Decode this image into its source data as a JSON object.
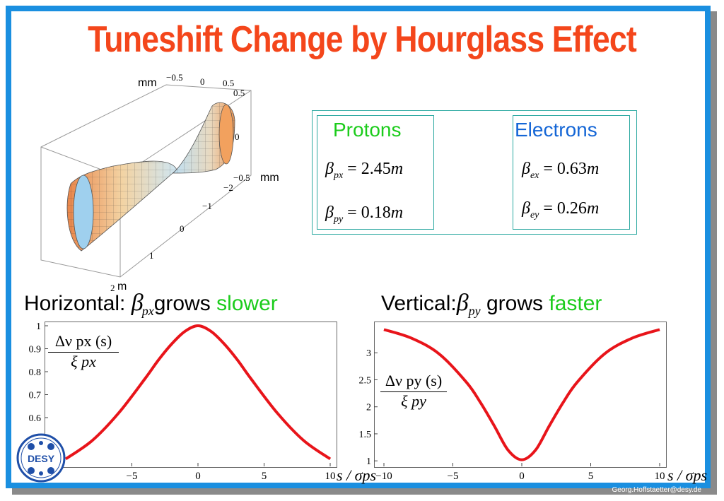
{
  "title": "Tuneshift Change by Hourglass Effect",
  "surface_plot": {
    "tick_labels": [
      "−0.5",
      "0",
      "0.5",
      "0.5",
      "0",
      "−0.5",
      "−2",
      "−1",
      "0",
      "1",
      "2"
    ],
    "unit_labels": [
      "mm",
      "mm",
      "m"
    ]
  },
  "beta_table": {
    "protons": {
      "heading": "Protons",
      "rows": [
        {
          "symbol": "β",
          "sub": "px",
          "rhs": "= 2.45",
          "unit": "m"
        },
        {
          "symbol": "β",
          "sub": "py",
          "rhs": "= 0.18",
          "unit": "m"
        }
      ]
    },
    "electrons": {
      "heading": "Electrons",
      "rows": [
        {
          "symbol": "β",
          "sub": "ex",
          "rhs": "= 0.63",
          "unit": "m"
        },
        {
          "symbol": "β",
          "sub": "ey",
          "rhs": "= 0.26",
          "unit": "m"
        }
      ]
    }
  },
  "captions": {
    "left": {
      "prefix": "Horizontal:",
      "sym": "β",
      "sub": "px",
      "mid": "grows",
      "tail": "slower"
    },
    "right": {
      "prefix": "Vertical:",
      "sym": "β",
      "sub": "py",
      "mid": "grows",
      "tail": "faster"
    }
  },
  "colors": {
    "title": "#f4461b",
    "frame": "#1a8fe0",
    "curve": "#e8141a",
    "green": "#1ccc1c",
    "blue": "#1466d6"
  },
  "chart_data": [
    {
      "type": "line",
      "xlabel": "s / σps",
      "ylabel_num": "Δν px (s)",
      "ylabel_den": "ξ px",
      "xlim": [
        -10,
        10
      ],
      "ylim": [
        0.4,
        1.0
      ],
      "x_ticks": [
        -5,
        0,
        5,
        10
      ],
      "y_ticks": [
        1,
        0.9,
        0.8,
        0.7,
        0.6,
        0.5
      ],
      "series": [
        {
          "x": [
            -10,
            -8,
            -6,
            -4,
            -3,
            -2,
            -1,
            0,
            1,
            2,
            3,
            4,
            6,
            8,
            10
          ],
          "y": [
            0.42,
            0.5,
            0.62,
            0.77,
            0.85,
            0.92,
            0.975,
            1.0,
            0.975,
            0.92,
            0.85,
            0.77,
            0.62,
            0.5,
            0.42
          ]
        }
      ]
    },
    {
      "type": "line",
      "xlabel": "s / σps",
      "ylabel_num": "Δν py (s)",
      "ylabel_den": "ξ py",
      "xlim": [
        -10,
        10
      ],
      "ylim": [
        0.95,
        3.5
      ],
      "x_ticks": [
        -10,
        -5,
        0,
        5,
        10
      ],
      "y_ticks": [
        3,
        2.5,
        2,
        1.5,
        1
      ],
      "series": [
        {
          "x": [
            -10,
            -8,
            -6,
            -4,
            -3,
            -2,
            -1,
            0,
            1,
            2,
            3,
            4,
            6,
            8,
            10
          ],
          "y": [
            3.43,
            3.27,
            2.98,
            2.45,
            2.08,
            1.65,
            1.2,
            1.02,
            1.2,
            1.65,
            2.08,
            2.45,
            2.98,
            3.27,
            3.43
          ]
        }
      ]
    }
  ],
  "footer": "Georg.Hoffstaetter@desy.de",
  "logo_text": "DESY"
}
